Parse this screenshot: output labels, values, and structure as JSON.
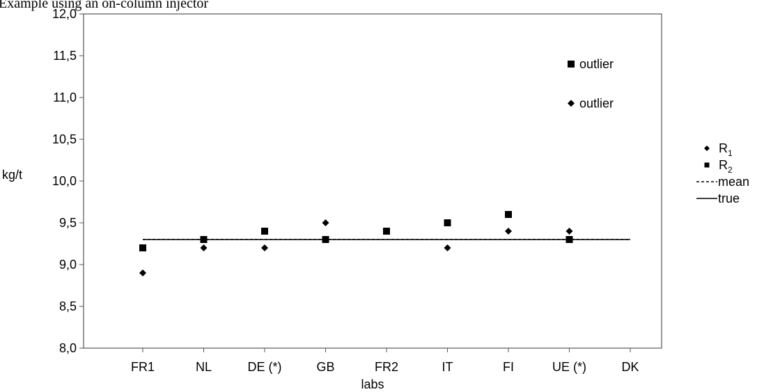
{
  "title": "Example using an on-column injector",
  "chart_data": {
    "type": "scatter",
    "ylabel": "kg/t",
    "xlabel": "labs",
    "ylim": [
      8.0,
      12.0
    ],
    "yticks": [
      "8,0",
      "8,5",
      "9,0",
      "9,5",
      "10,0",
      "10,5",
      "11,0",
      "11,5",
      "12,0"
    ],
    "categories": [
      "FR1",
      "NL",
      "DE (*)",
      "GB",
      "FR2",
      "IT",
      "FI",
      "UE (*)",
      "DK"
    ],
    "series": [
      {
        "name": "R",
        "subscript": "1",
        "marker": "diamond",
        "values": [
          8.9,
          9.2,
          9.2,
          9.5,
          9.4,
          9.2,
          9.4,
          9.4,
          null
        ]
      },
      {
        "name": "R",
        "subscript": "2",
        "marker": "square",
        "values": [
          9.2,
          9.3,
          9.4,
          9.3,
          9.4,
          9.5,
          9.6,
          9.3,
          null
        ]
      }
    ],
    "lines": [
      {
        "name": "mean",
        "style": "dashed",
        "value": 9.3
      },
      {
        "name": "true",
        "style": "solid",
        "value": 9.3
      }
    ],
    "annotations": [
      {
        "text": "outlier",
        "marker": "square",
        "y": 11.4
      },
      {
        "text": "outlier",
        "marker": "diamond",
        "y": 10.93
      }
    ],
    "grid": false,
    "legend_position": "right"
  }
}
